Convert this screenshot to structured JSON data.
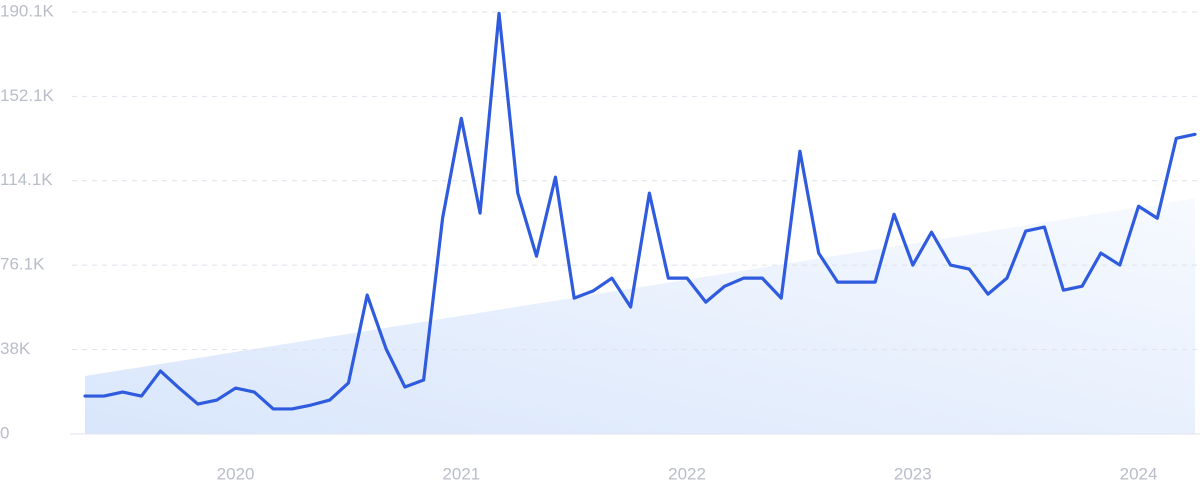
{
  "chart_data": {
    "type": "line",
    "x": [
      2019.333,
      2019.417,
      2019.5,
      2019.583,
      2019.667,
      2019.75,
      2019.833,
      2019.917,
      2020,
      2020.083,
      2020.167,
      2020.25,
      2020.333,
      2020.417,
      2020.5,
      2020.583,
      2020.667,
      2020.75,
      2020.833,
      2020.917,
      2021,
      2021.083,
      2021.167,
      2021.25,
      2021.333,
      2021.417,
      2021.5,
      2021.583,
      2021.667,
      2021.75,
      2021.833,
      2021.917,
      2022,
      2022.083,
      2022.167,
      2022.25,
      2022.333,
      2022.417,
      2022.5,
      2022.583,
      2022.667,
      2022.75,
      2022.833,
      2022.917,
      2023,
      2023.083,
      2023.167,
      2023.25,
      2023.333,
      2023.417,
      2023.5,
      2023.583,
      2023.667,
      2023.75,
      2023.833,
      2023.917,
      2024,
      2024.083,
      2024.167,
      2024.25
    ],
    "values": [
      17100,
      17100,
      18900,
      17100,
      28400,
      20700,
      13500,
      15300,
      20700,
      18900,
      11300,
      11300,
      13000,
      15300,
      23000,
      62600,
      38300,
      21200,
      24300,
      97200,
      142200,
      99500,
      189500,
      108500,
      80100,
      115700,
      61200,
      64400,
      70200,
      57200,
      108500,
      70200,
      70200,
      59400,
      66600,
      70200,
      70200,
      61200,
      127400,
      81500,
      68400,
      68400,
      68400,
      99000,
      76100,
      90900,
      76100,
      74300,
      63000,
      70200,
      91400,
      93200,
      64800,
      66600,
      81500,
      76100,
      102600,
      97200,
      133200,
      135000
    ],
    "color": "#2f5bde",
    "trend": {
      "x": [
        2019.333,
        2024.25
      ],
      "values": [
        26100,
        106200
      ],
      "color": "#dbe7fb"
    },
    "xlim": [
      2019.333,
      2024.25
    ],
    "xticks": [
      2020,
      2021,
      2022,
      2023,
      2024
    ],
    "ylim": [
      0,
      190100
    ],
    "yticks": [
      0,
      {
        "value": 38000,
        "label": "38K"
      },
      {
        "value": 76100,
        "label": "76.1K"
      },
      {
        "value": 114100,
        "label": "114.1K"
      },
      {
        "value": 152100,
        "label": "152.1K"
      },
      {
        "value": 190100,
        "label": "190.1K"
      }
    ],
    "grid": true
  }
}
